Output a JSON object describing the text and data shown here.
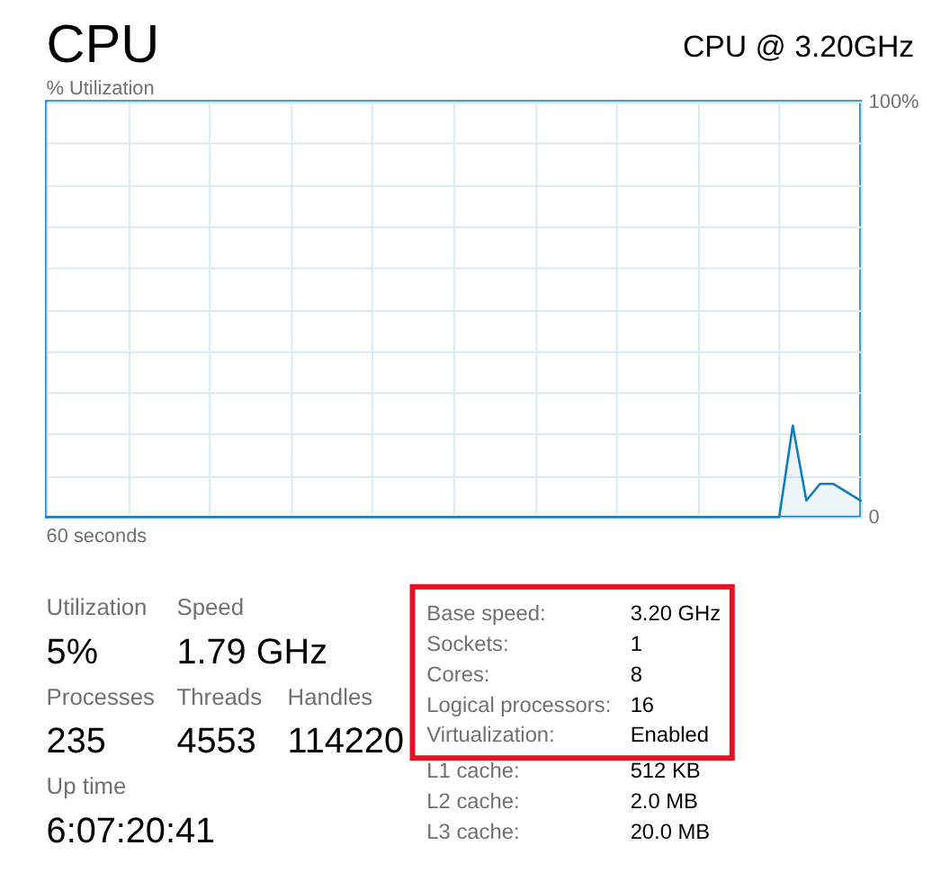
{
  "chart_data": [
    {
      "type": "area",
      "title": "CPU",
      "subtitle": "CPU @ 3.20GHz",
      "ylabel": "% Utilization",
      "xlabel": "60 seconds",
      "categories": [
        null,
        null,
        null,
        null,
        null,
        null,
        null,
        null,
        null,
        null,
        null,
        null,
        null,
        null,
        null,
        null,
        null,
        null,
        null,
        null,
        null,
        null,
        null,
        null,
        null,
        null,
        null,
        null,
        null,
        null,
        null,
        null,
        null,
        null,
        null,
        null,
        null,
        null,
        null,
        null,
        null,
        null,
        null,
        null,
        null,
        null,
        null,
        null,
        null,
        null,
        null,
        null,
        null,
        null,
        null,
        null,
        null,
        null,
        null,
        null,
        null
      ],
      "series": [
        {
          "color": "#117dbb",
          "values": [
            0,
            0,
            0,
            0,
            0,
            0,
            0,
            0,
            0,
            0,
            0,
            0,
            0,
            0,
            0,
            0,
            0,
            0,
            0,
            0,
            0,
            0,
            0,
            0,
            0,
            0,
            0,
            0,
            0,
            0,
            0,
            0,
            0,
            0,
            0,
            0,
            0,
            0,
            0,
            0,
            0,
            0,
            0,
            0,
            0,
            0,
            0,
            0,
            0,
            0,
            0,
            0,
            0,
            0,
            0,
            22,
            4,
            8,
            8,
            6,
            4
          ]
        }
      ],
      "ylim": [
        0,
        100
      ],
      "yticks": [
        {
          "value": 0,
          "label": "0"
        },
        {
          "value": 10,
          "label": null
        },
        {
          "value": 20,
          "label": null
        },
        {
          "value": 30,
          "label": null
        },
        {
          "value": 40,
          "label": null
        },
        {
          "value": 50,
          "label": null
        },
        {
          "value": 60,
          "label": null
        },
        {
          "value": 70,
          "label": null
        },
        {
          "value": 80,
          "label": null
        },
        {
          "value": 90,
          "label": null
        },
        {
          "value": 100,
          "label": "100%"
        }
      ],
      "grid": true
    },
    {
      "type": "other",
      "annotations": [
        "Utilization",
        "5%",
        "Speed",
        "1.79 GHz",
        "Processes",
        "235",
        "Threads",
        "4553",
        "Handles",
        "114220",
        "Up time",
        "6:07:20:41",
        "Base speed:",
        "3.20 GHz",
        "Sockets:",
        "1",
        "Cores:",
        "8",
        "Logical processors:",
        "16",
        "Virtualization:",
        "Enabled",
        "L1 cache:",
        "512 KB",
        "L2 cache:",
        "2.0 MB",
        "L3 cache:",
        "20.0 MB"
      ]
    }
  ]
}
